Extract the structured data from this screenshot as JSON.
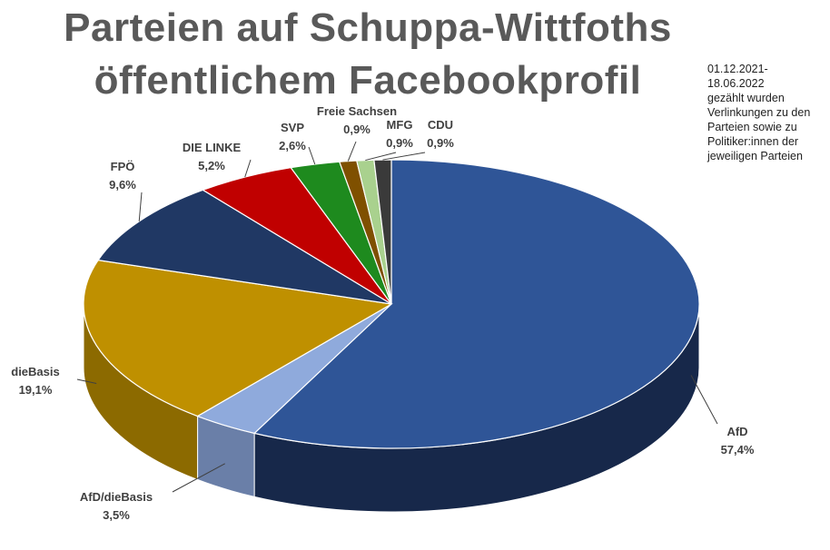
{
  "chart_data": {
    "type": "pie",
    "title_lines": [
      "Parteien auf Schuppa-Wittfoths",
      "öffentlichem Facebookprofil"
    ],
    "note_lines": [
      "01.12.2021-",
      "18.06.2022",
      "gezählt wurden",
      "Verlinkungen zu den",
      "Parteien sowie zu",
      "Politiker:innen der",
      "jeweiligen Parteien"
    ],
    "slices": [
      {
        "name": "AfD",
        "value": 57.4,
        "label": "57,4%",
        "color": "#2f5597",
        "side": "#17284a"
      },
      {
        "name": "AfD/dieBasis",
        "value": 3.5,
        "label": "3,5%",
        "color": "#8faadc",
        "side": "#6a7fa8"
      },
      {
        "name": "dieBasis",
        "value": 19.1,
        "label": "19,1%",
        "color": "#bf9000",
        "side": "#8c6a00"
      },
      {
        "name": "FPÖ",
        "value": 9.6,
        "label": "9,6%",
        "color": "#203864",
        "side": "#152646"
      },
      {
        "name": "DIE LINKE",
        "value": 5.2,
        "label": "5,2%",
        "color": "#c00000",
        "side": "#800000"
      },
      {
        "name": "SVP",
        "value": 2.6,
        "label": "2,6%",
        "color": "#1e8a1e",
        "side": "#145c14"
      },
      {
        "name": "Freie Sachsen",
        "value": 0.9,
        "label": "0,9%",
        "color": "#7f5000",
        "side": "#553500"
      },
      {
        "name": "MFG",
        "value": 0.9,
        "label": "0,9%",
        "color": "#a9d18e",
        "side": "#7f9e6a"
      },
      {
        "name": "CDU",
        "value": 0.9,
        "label": "0,9%",
        "color": "#3a3a3a",
        "side": "#222222"
      }
    ]
  }
}
